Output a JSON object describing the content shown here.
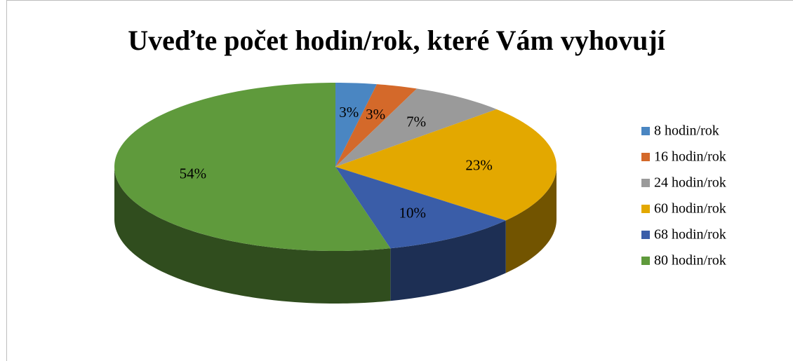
{
  "chart_data": {
    "type": "pie",
    "title": "Uveďte počet hodin/rok, které Vám vyhovují",
    "categories": [
      "8 hodin/rok",
      "16 hodin/rok",
      "24 hodin/rok",
      "60 hodin/rok",
      "68 hodin/rok",
      "80 hodin/rok"
    ],
    "values": [
      3,
      3,
      7,
      23,
      10,
      54
    ],
    "value_labels": [
      "3%",
      "3%",
      "7%",
      "23%",
      "10%",
      "54%"
    ],
    "colors": [
      "#4a86c2",
      "#d4692a",
      "#9a9a9a",
      "#e3a800",
      "#3a5da8",
      "#5f9a3c"
    ],
    "legend": "right",
    "three_d": true
  }
}
